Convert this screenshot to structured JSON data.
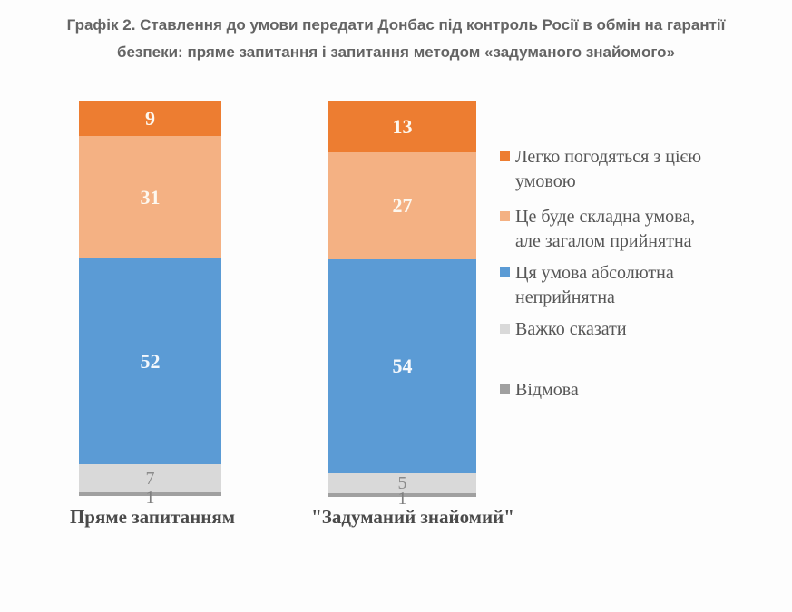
{
  "title": {
    "full": "Графік 2. Ставлення до умови передати Донбас під контроль Росії в обмін на гарантії безпеки: пряме запитання і запитання методом «задуманого знайомого»",
    "lines": [
      "Графік 2. Ставлення до умови передати Донбас під контроль Росії в обмін на гарантії",
      "безпеки: пряме запитання і запитання методом «задуманого знайомого»"
    ]
  },
  "chart_data": {
    "type": "bar",
    "stacked": true,
    "title": "Графік 2. Ставлення до умови передати Донбас під контроль Росії в обмін на гарантії безпеки: пряме запитання і запитання методом «задуманого знайомого»",
    "categories": [
      "Пряме запитанням",
      "\"Задуманий знайомий\""
    ],
    "series": [
      {
        "name": "Легко погодяться з цією умовою",
        "color": "#ED7D31",
        "label_color": "#fdf8ef",
        "values": [
          9,
          13
        ]
      },
      {
        "name": "Це буде складна умова, але загалом прийнятна",
        "color": "#F4B183",
        "label_color": "#fdf8ef",
        "values": [
          31,
          27
        ]
      },
      {
        "name": "Ця умова абсолютна неприйнятна",
        "color": "#5B9BD5",
        "label_color": "#f4f8fc",
        "values": [
          52,
          54
        ]
      },
      {
        "name": "Важко сказати",
        "color": "#D9D9D9",
        "label_color": "#8a8a8a",
        "values": [
          7,
          5
        ]
      },
      {
        "name": "Відмова",
        "color": "#A0A0A0",
        "label_color": "#7f7f7f",
        "values": [
          1,
          1
        ]
      }
    ],
    "ylim": [
      0,
      100
    ],
    "grid": false,
    "legend_position": "right"
  },
  "legend": {
    "items": [
      {
        "color": "#ED7D31",
        "label": "Легко погодяться з цією умовою",
        "lines": [
          "Легко погодяться з цією",
          "умовою"
        ]
      },
      {
        "color": "#F4B183",
        "label": "Це буде складна умова, але загалом прийнятна",
        "lines": [
          "Це буде складна умова,",
          "але загалом прийнятна"
        ]
      },
      {
        "color": "#5B9BD5",
        "label": "Ця умова абсолютна неприйнятна",
        "lines": [
          "Ця умова абсолютна",
          "неприйнятна"
        ]
      },
      {
        "color": "#D9D9D9",
        "label": "Важко сказати",
        "lines": [
          "Важко сказати"
        ]
      },
      {
        "color": "#A0A0A0",
        "label": "Відмова",
        "lines": [
          "Відмова"
        ]
      }
    ]
  }
}
